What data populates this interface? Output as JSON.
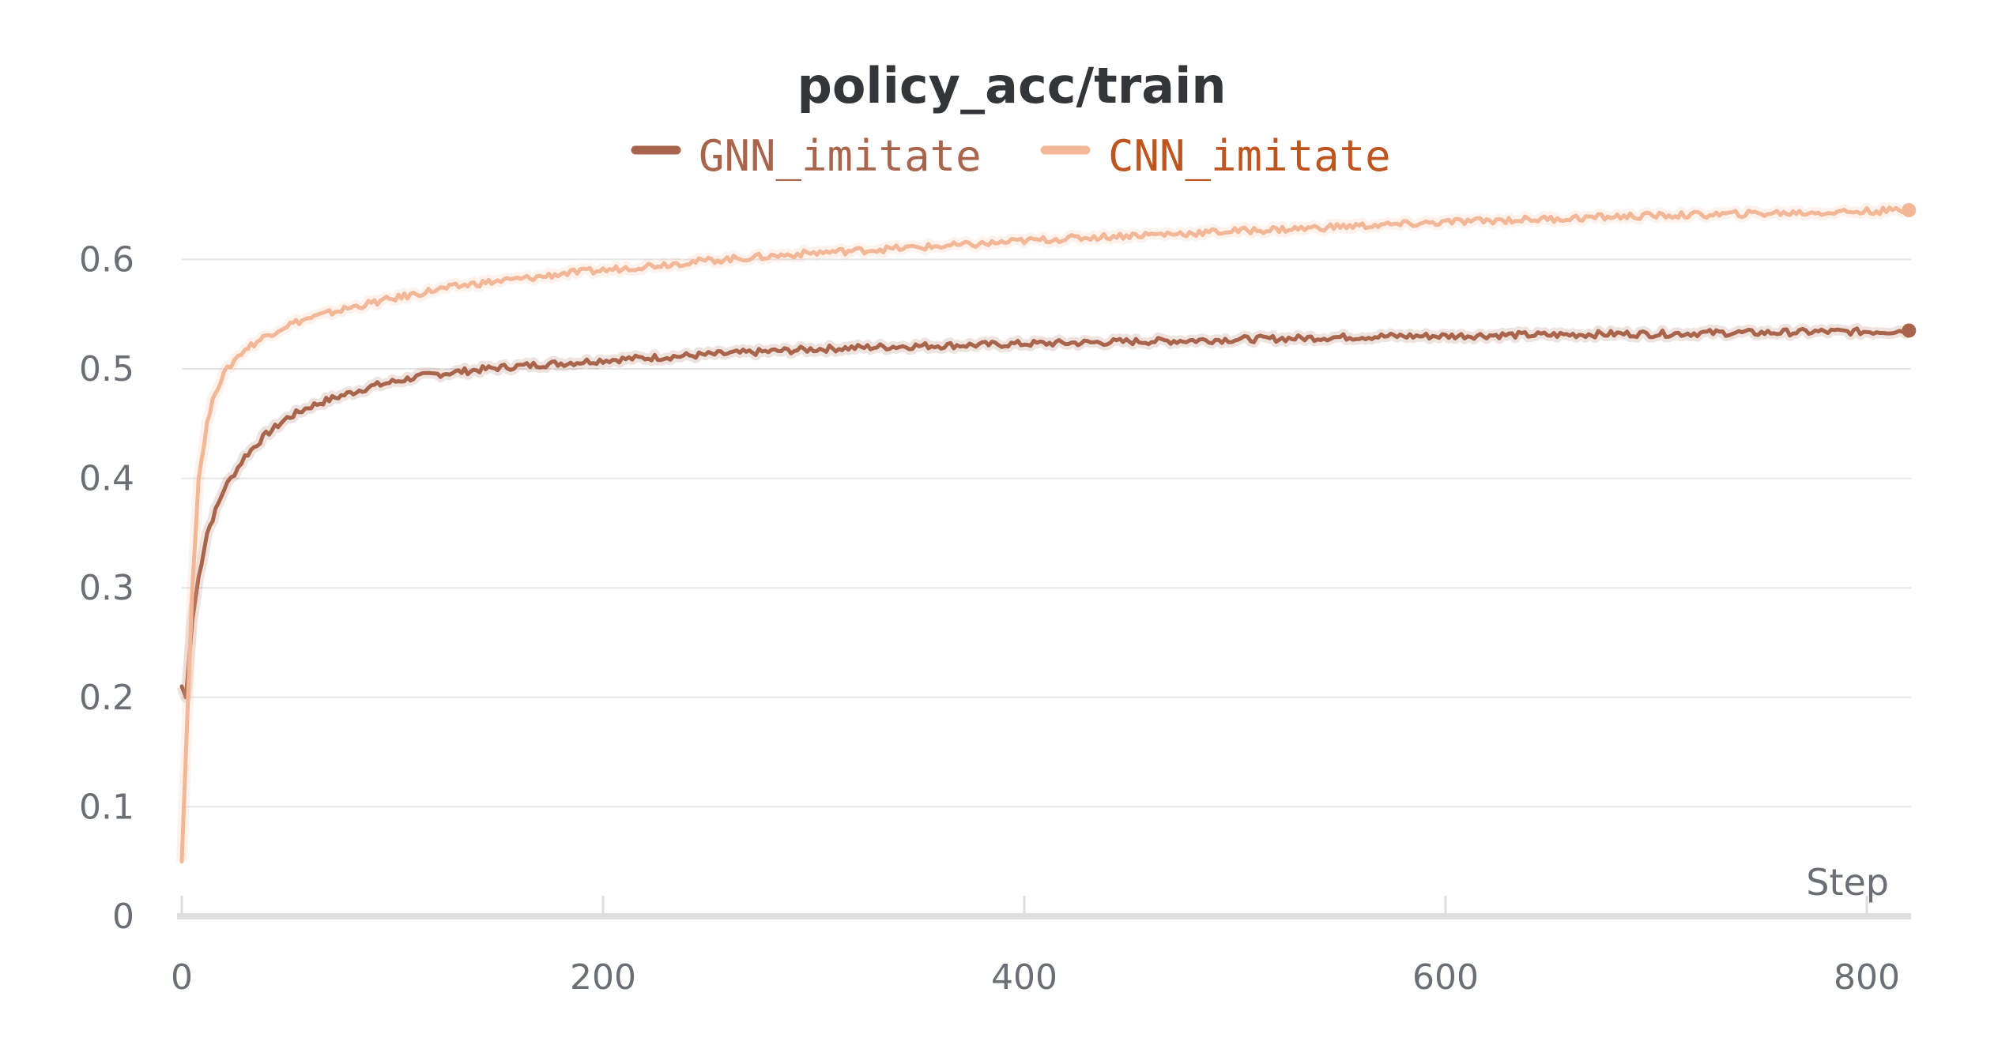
{
  "chart_data": {
    "type": "line",
    "title": "policy_acc/train",
    "xlabel": "Step",
    "ylabel": "",
    "xlim": [
      0,
      820
    ],
    "ylim": [
      0,
      0.66
    ],
    "xticks": [
      "0",
      "200",
      "400",
      "600",
      "800"
    ],
    "yticks": [
      "0",
      "0.1",
      "0.2",
      "0.3",
      "0.4",
      "0.5",
      "0.6"
    ],
    "grid": true,
    "legend_position": "top-center",
    "series": [
      {
        "name": "GNN_imitate",
        "color": "#a9654c",
        "x": [
          0,
          2,
          5,
          8,
          12,
          16,
          20,
          25,
          30,
          40,
          50,
          60,
          70,
          80,
          90,
          100,
          110,
          120,
          130,
          140,
          150,
          170,
          180,
          200,
          220,
          250,
          280,
          300,
          330,
          350,
          380,
          400,
          430,
          450,
          480,
          500,
          530,
          550,
          580,
          600,
          630,
          650,
          680,
          700,
          730,
          750,
          780,
          800,
          820
        ],
        "values": [
          0.21,
          0.2,
          0.27,
          0.31,
          0.35,
          0.37,
          0.39,
          0.405,
          0.42,
          0.44,
          0.455,
          0.465,
          0.472,
          0.478,
          0.484,
          0.488,
          0.492,
          0.495,
          0.497,
          0.499,
          0.501,
          0.504,
          0.505,
          0.508,
          0.51,
          0.513,
          0.516,
          0.518,
          0.52,
          0.521,
          0.522,
          0.523,
          0.524,
          0.525,
          0.526,
          0.527,
          0.528,
          0.529,
          0.53,
          0.53,
          0.531,
          0.531,
          0.532,
          0.532,
          0.533,
          0.533,
          0.534,
          0.534,
          0.535
        ]
      },
      {
        "name": "CNN_imitate",
        "color": "#f2b797",
        "x": [
          0,
          2,
          5,
          8,
          12,
          16,
          20,
          25,
          30,
          40,
          50,
          60,
          70,
          80,
          90,
          100,
          110,
          120,
          130,
          140,
          150,
          170,
          180,
          200,
          220,
          250,
          280,
          300,
          330,
          350,
          380,
          400,
          430,
          450,
          480,
          500,
          530,
          550,
          580,
          600,
          630,
          650,
          680,
          700,
          730,
          750,
          780,
          800,
          820
        ],
        "values": [
          0.05,
          0.15,
          0.3,
          0.4,
          0.45,
          0.48,
          0.495,
          0.508,
          0.518,
          0.53,
          0.54,
          0.546,
          0.551,
          0.556,
          0.56,
          0.564,
          0.568,
          0.572,
          0.575,
          0.578,
          0.58,
          0.584,
          0.587,
          0.59,
          0.594,
          0.599,
          0.603,
          0.606,
          0.609,
          0.611,
          0.614,
          0.617,
          0.62,
          0.622,
          0.624,
          0.626,
          0.628,
          0.63,
          0.632,
          0.634,
          0.636,
          0.637,
          0.639,
          0.64,
          0.641,
          0.642,
          0.643,
          0.644,
          0.645
        ]
      }
    ]
  },
  "legend_colors": {
    "GNN_imitate_text": "#a9654c",
    "CNN_imitate_text": "#c0541f"
  },
  "colors": {
    "grid": "#e6e6e6",
    "axis": "#dedede",
    "tick_text": "#6b6e75",
    "title_text": "#333538"
  }
}
